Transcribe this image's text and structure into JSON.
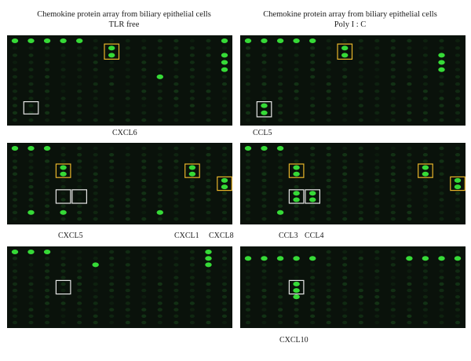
{
  "figure": {
    "left_header": {
      "title": "Chemokine protein array from biliary epithelial cells",
      "condition": "TLR free"
    },
    "right_header": {
      "title": "Chemokine protein array from biliary epithelial cells",
      "condition": "Poly I : C"
    },
    "labels": {
      "cxcl6": "CXCL6",
      "ccl5": "CCL5",
      "cxcl5": "CXCL5",
      "cxcl1": "CXCL1",
      "cxcl8": "CXCL8",
      "ccl3": "CCL3",
      "ccl4": "CCL4",
      "cxcl10": "CXCL10"
    },
    "colors": {
      "background": "#0a120b",
      "spot_bright": "#39e63a",
      "spot_dim": "#1f5a22",
      "highlight_box_yellow": "#e8b52a",
      "highlight_box_white": "#e6e6e6"
    }
  }
}
